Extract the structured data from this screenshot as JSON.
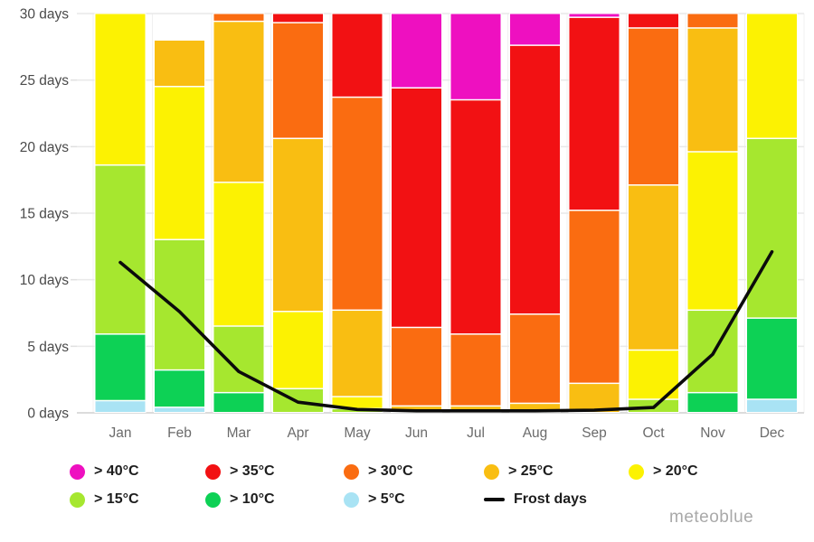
{
  "watermark": "meteoblue",
  "chart_data": {
    "type": "bar",
    "stacked": true,
    "title": "",
    "xlabel": "",
    "ylabel": "days",
    "ylim": [
      0,
      30
    ],
    "grid": true,
    "y_ticks": [
      0,
      5,
      10,
      15,
      20,
      25,
      30
    ],
    "y_tick_labels": [
      "0 days",
      "5 days",
      "10 days",
      "15 days",
      "20 days",
      "25 days",
      "30 days"
    ],
    "categories": [
      "Jan",
      "Feb",
      "Mar",
      "Apr",
      "May",
      "Jun",
      "Jul",
      "Aug",
      "Sep",
      "Oct",
      "Nov",
      "Dec"
    ],
    "series": [
      {
        "key": "gt40",
        "label": "> 40°C",
        "color": "#ee10c0",
        "type": "bar"
      },
      {
        "key": "gt35",
        "label": "> 35°C",
        "color": "#f21113",
        "type": "bar"
      },
      {
        "key": "gt30",
        "label": "> 30°C",
        "color": "#fa6c11",
        "type": "bar"
      },
      {
        "key": "gt25",
        "label": "> 25°C",
        "color": "#f9be12",
        "type": "bar"
      },
      {
        "key": "gt20",
        "label": "> 20°C",
        "color": "#fcf202",
        "type": "bar"
      },
      {
        "key": "gt15",
        "label": "> 15°C",
        "color": "#a6e72f",
        "type": "bar"
      },
      {
        "key": "gt10",
        "label": "> 10°C",
        "color": "#0dd155",
        "type": "bar"
      },
      {
        "key": "gt5",
        "label": "> 5°C",
        "color": "#a9e3f4",
        "type": "bar"
      },
      {
        "key": "frost",
        "label": "Frost days",
        "color": "#0b0b0b",
        "type": "line"
      }
    ],
    "bars": [
      {
        "month": "Jan",
        "segments": [
          [
            "gt5",
            0.9
          ],
          [
            "gt10",
            5.0
          ],
          [
            "gt15",
            12.7
          ],
          [
            "gt20",
            11.4
          ]
        ]
      },
      {
        "month": "Feb",
        "segments": [
          [
            "gt5",
            0.4
          ],
          [
            "gt10",
            2.8
          ],
          [
            "gt15",
            9.8
          ],
          [
            "gt20",
            11.5
          ],
          [
            "gt25",
            3.5
          ]
        ]
      },
      {
        "month": "Mar",
        "segments": [
          [
            "gt10",
            1.5
          ],
          [
            "gt15",
            5.0
          ],
          [
            "gt20",
            10.8
          ],
          [
            "gt25",
            12.1
          ],
          [
            "gt30",
            0.6
          ]
        ]
      },
      {
        "month": "Apr",
        "segments": [
          [
            "gt15",
            1.8
          ],
          [
            "gt20",
            5.8
          ],
          [
            "gt25",
            13.0
          ],
          [
            "gt30",
            8.7
          ],
          [
            "gt35",
            0.7
          ]
        ]
      },
      {
        "month": "May",
        "segments": [
          [
            "gt15",
            0.3
          ],
          [
            "gt20",
            0.9
          ],
          [
            "gt25",
            6.5
          ],
          [
            "gt30",
            16.0
          ],
          [
            "gt35",
            6.3
          ]
        ]
      },
      {
        "month": "Jun",
        "segments": [
          [
            "gt25",
            0.5
          ],
          [
            "gt30",
            5.9
          ],
          [
            "gt35",
            18.0
          ],
          [
            "gt40",
            5.6
          ]
        ]
      },
      {
        "month": "Jul",
        "segments": [
          [
            "gt25",
            0.5
          ],
          [
            "gt30",
            5.4
          ],
          [
            "gt35",
            17.6
          ],
          [
            "gt40",
            6.5
          ]
        ]
      },
      {
        "month": "Aug",
        "segments": [
          [
            "gt25",
            0.7
          ],
          [
            "gt30",
            6.7
          ],
          [
            "gt35",
            20.2
          ],
          [
            "gt40",
            2.4
          ]
        ]
      },
      {
        "month": "Sep",
        "segments": [
          [
            "gt25",
            2.2
          ],
          [
            "gt30",
            13.0
          ],
          [
            "gt35",
            14.5
          ],
          [
            "gt40",
            0.3
          ]
        ]
      },
      {
        "month": "Oct",
        "segments": [
          [
            "gt15",
            1.0
          ],
          [
            "gt20",
            3.7
          ],
          [
            "gt25",
            12.4
          ],
          [
            "gt30",
            11.8
          ],
          [
            "gt35",
            1.1
          ]
        ]
      },
      {
        "month": "Nov",
        "segments": [
          [
            "gt10",
            1.5
          ],
          [
            "gt15",
            6.2
          ],
          [
            "gt20",
            11.9
          ],
          [
            "gt25",
            9.3
          ],
          [
            "gt30",
            1.1
          ]
        ]
      },
      {
        "month": "Dec",
        "segments": [
          [
            "gt5",
            1.0
          ],
          [
            "gt10",
            6.1
          ],
          [
            "gt15",
            13.5
          ],
          [
            "gt20",
            9.4
          ]
        ]
      }
    ],
    "frost_line": {
      "name": "Frost days",
      "color": "#0b0b0b",
      "values": [
        11.3,
        7.6,
        3.1,
        0.8,
        0.25,
        0.15,
        0.15,
        0.15,
        0.2,
        0.4,
        4.4,
        12.1
      ]
    },
    "legend_position": "bottom"
  },
  "legend": {
    "items": [
      {
        "key": "gt40",
        "label": "> 40°C",
        "row": 0,
        "col": 0
      },
      {
        "key": "gt35",
        "label": "> 35°C",
        "row": 0,
        "col": 1
      },
      {
        "key": "gt30",
        "label": "> 30°C",
        "row": 0,
        "col": 2
      },
      {
        "key": "gt25",
        "label": "> 25°C",
        "row": 0,
        "col": 3
      },
      {
        "key": "gt20",
        "label": "> 20°C",
        "row": 0,
        "col": 4
      },
      {
        "key": "gt15",
        "label": "> 15°C",
        "row": 1,
        "col": 0
      },
      {
        "key": "gt10",
        "label": "> 10°C",
        "row": 1,
        "col": 1
      },
      {
        "key": "gt5",
        "label": "> 5°C",
        "row": 1,
        "col": 2
      },
      {
        "key": "frost",
        "label": "Frost days",
        "row": 1,
        "col": 3
      }
    ]
  }
}
